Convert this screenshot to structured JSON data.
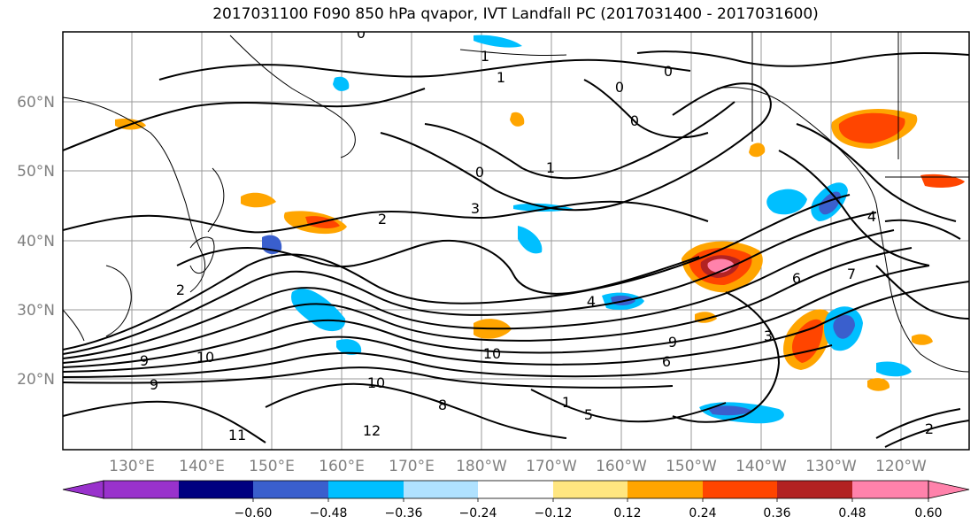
{
  "title": "2017031100 F090 850 hPa qvapor, IVT Landfall PC (2017031400 - 2017031600)",
  "map": {
    "lon_ticks": [
      "130°E",
      "140°E",
      "150°E",
      "160°E",
      "170°E",
      "180°W",
      "170°W",
      "160°W",
      "150°W",
      "140°W",
      "130°W",
      "120°W"
    ],
    "lat_ticks": [
      "60°N",
      "50°N",
      "40°N",
      "30°N",
      "20°N"
    ],
    "contour_labels": [
      "0",
      "1",
      "0",
      "0",
      "0",
      "1",
      "2",
      "3",
      "2",
      "4",
      "6",
      "9",
      "10",
      "10",
      "9",
      "10",
      "11",
      "12",
      "8",
      "1",
      "5",
      "6",
      "7",
      "9",
      "3",
      "4",
      "2",
      "0",
      "1"
    ]
  },
  "colorbar": {
    "colors": [
      "#9932cc",
      "#000080",
      "#3a5fcd",
      "#00bfff",
      "#b0e2ff",
      "#ffffff",
      "#ffe680",
      "#ffa500",
      "#ff4500",
      "#b22222",
      "#ff82ab"
    ],
    "tick_labels": [
      "−0.60",
      "−0.48",
      "−0.36",
      "−0.24",
      "−0.12",
      "0.12",
      "0.24",
      "0.36",
      "0.48",
      "0.60"
    ]
  }
}
